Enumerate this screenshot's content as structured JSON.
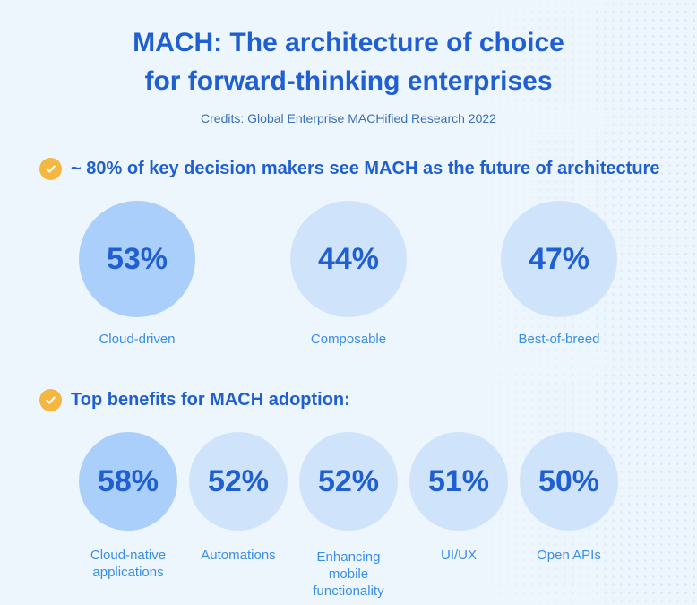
{
  "title_line1": "MACH: The architecture of choice",
  "title_line2": "for forward-thinking enterprises",
  "credits": "Credits: Global Enterprise MACHified Research 2022",
  "section1": {
    "heading": "~ 80% of key decision makers see MACH as the future of architecture",
    "stats": [
      {
        "value": "53%",
        "label": "Cloud-driven"
      },
      {
        "value": "44%",
        "label": "Composable"
      },
      {
        "value": "47%",
        "label": "Best-of-breed"
      }
    ]
  },
  "section2": {
    "heading": "Top benefits for MACH adoption:",
    "stats": [
      {
        "value": "58%",
        "label_lines": [
          "Cloud-native",
          "applications"
        ]
      },
      {
        "value": "52%",
        "label_lines": [
          "Automations"
        ]
      },
      {
        "value": "52%",
        "label_lines": [
          "Enhancing",
          "mobile",
          "functionality"
        ]
      },
      {
        "value": "51%",
        "label_lines": [
          "UI/UX"
        ]
      },
      {
        "value": "50%",
        "label_lines": [
          "Open APIs"
        ]
      }
    ]
  },
  "colors": {
    "accent": "#1f5fd1",
    "label": "#3b8ee6",
    "check": "#f4b740",
    "circle_strong": "#a9cffa",
    "circle_light": "#cfe4fb",
    "background": "#edf5fd"
  }
}
